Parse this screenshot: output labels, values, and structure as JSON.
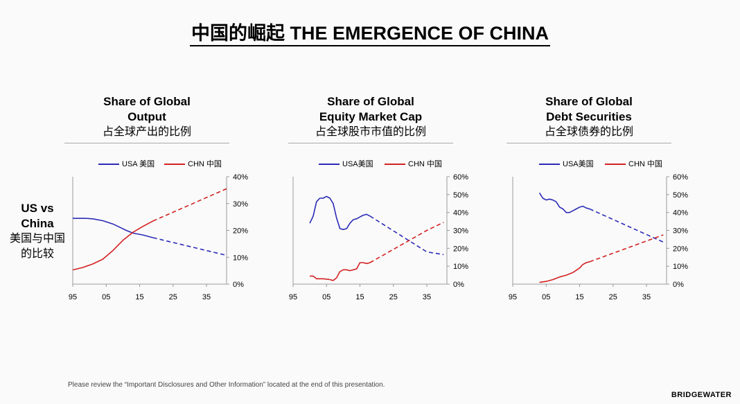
{
  "title": "中国的崛起 THE EMERGENCE OF CHINA",
  "side_label": {
    "en_line1": "US vs",
    "en_line2": "China",
    "cn_line1": "美国与中国",
    "cn_line2": "的比较"
  },
  "panels": [
    {
      "title1": "Share of Global",
      "title2": "Output",
      "subtitle": "占全球产出的比例",
      "legend": [
        "USA 美国",
        "CHN 中国"
      ]
    },
    {
      "title1": "Share of Global",
      "title2": "Equity Market Cap",
      "subtitle": "占全球股市市值的比例",
      "legend": [
        "USA美国",
        "CHN 中国"
      ]
    },
    {
      "title1": "Share of Global",
      "title2": "Debt Securities",
      "subtitle": "占全球债券的比例",
      "legend": [
        "USA美国",
        "CHN 中国"
      ]
    }
  ],
  "footer": "Please review the “Important Disclosures and Other Information” located at the end of this presentation.",
  "brand": "BRIDGEWATER",
  "colors": {
    "usa": "#2a2ab8",
    "chn": "#d42020",
    "axis": "#999999"
  },
  "chart_data": [
    {
      "type": "line",
      "x_ticks": [
        "95",
        "05",
        "15",
        "25",
        "35"
      ],
      "x_tick_values": [
        1995,
        2005,
        2015,
        2025,
        2035
      ],
      "xlim": [
        1995,
        2041
      ],
      "y_ticks": [
        "0%",
        "10%",
        "20%",
        "30%",
        "40%"
      ],
      "y_tick_values": [
        0,
        10,
        20,
        30,
        40
      ],
      "ylim": [
        0,
        40
      ],
      "y_axis": "right",
      "line_style": "solid through 2019, dashed projection after",
      "series": [
        {
          "name": "USA 美国",
          "actual": [
            [
              1995,
              24.5
            ],
            [
              1999,
              24.5
            ],
            [
              2001,
              24.3
            ],
            [
              2004,
              23.6
            ],
            [
              2007,
              22.4
            ],
            [
              2009,
              21.2
            ],
            [
              2011,
              20
            ],
            [
              2013,
              19
            ],
            [
              2016,
              18.3
            ],
            [
              2019,
              17.3
            ]
          ],
          "projected": [
            [
              2019,
              17.3
            ],
            [
              2041,
              10.7
            ]
          ]
        },
        {
          "name": "CHN 中国",
          "actual": [
            [
              1995,
              5.3
            ],
            [
              1998,
              6.2
            ],
            [
              2001,
              7.5
            ],
            [
              2004,
              9.3
            ],
            [
              2007,
              12.5
            ],
            [
              2010,
              16.3
            ],
            [
              2013,
              19.3
            ],
            [
              2016,
              21.5
            ],
            [
              2019,
              23.5
            ]
          ],
          "projected": [
            [
              2019,
              23.5
            ],
            [
              2041,
              35.5
            ]
          ]
        }
      ]
    },
    {
      "type": "line",
      "x_ticks": [
        "95",
        "05",
        "15",
        "25",
        "35"
      ],
      "x_tick_values": [
        1995,
        2005,
        2015,
        2025,
        2035
      ],
      "xlim": [
        1995,
        2041
      ],
      "y_ticks": [
        "0%",
        "10%",
        "20%",
        "30%",
        "40%",
        "50%",
        "60%"
      ],
      "y_tick_values": [
        0,
        10,
        20,
        30,
        40,
        50,
        60
      ],
      "ylim": [
        0,
        60
      ],
      "y_axis": "right",
      "line_style": "solid through 2018, dashed projection after",
      "series": [
        {
          "name": "USA美国",
          "actual": [
            [
              2000,
              34
            ],
            [
              2001,
              38
            ],
            [
              2002,
              46
            ],
            [
              2003,
              48
            ],
            [
              2004,
              48
            ],
            [
              2005,
              49
            ],
            [
              2006,
              48
            ],
            [
              2007,
              45
            ],
            [
              2008,
              37
            ],
            [
              2009,
              31
            ],
            [
              2010,
              30.5
            ],
            [
              2011,
              31
            ],
            [
              2012,
              34
            ],
            [
              2013,
              36
            ],
            [
              2014,
              36.5
            ],
            [
              2015,
              37.5
            ],
            [
              2016,
              38.5
            ],
            [
              2017,
              39
            ],
            [
              2018,
              38
            ]
          ],
          "projected": [
            [
              2018,
              38
            ],
            [
              2035,
              18
            ],
            [
              2040,
              16.5
            ]
          ]
        },
        {
          "name": "CHN 中国",
          "actual": [
            [
              2000,
              4.5
            ],
            [
              2001,
              4.5
            ],
            [
              2002,
              3
            ],
            [
              2003,
              3
            ],
            [
              2004,
              3
            ],
            [
              2005,
              2.8
            ],
            [
              2006,
              2.5
            ],
            [
              2007,
              2
            ],
            [
              2008,
              3.5
            ],
            [
              2009,
              7
            ],
            [
              2010,
              8
            ],
            [
              2011,
              8
            ],
            [
              2012,
              7.5
            ],
            [
              2013,
              8
            ],
            [
              2014,
              8.5
            ],
            [
              2015,
              12
            ],
            [
              2016,
              12
            ],
            [
              2017,
              11.5
            ],
            [
              2018,
              12
            ]
          ],
          "projected": [
            [
              2018,
              12
            ],
            [
              2035,
              30
            ],
            [
              2040,
              34.5
            ]
          ]
        }
      ]
    },
    {
      "type": "line",
      "x_ticks": [
        "95",
        "05",
        "15",
        "25",
        "35"
      ],
      "x_tick_values": [
        1995,
        2005,
        2015,
        2025,
        2035
      ],
      "xlim": [
        1995,
        2041
      ],
      "y_ticks": [
        "0%",
        "10%",
        "20%",
        "30%",
        "40%",
        "50%",
        "60%"
      ],
      "y_tick_values": [
        0,
        10,
        20,
        30,
        40,
        50,
        60
      ],
      "ylim": [
        0,
        60
      ],
      "y_axis": "right",
      "line_style": "solid through 2018, dashed projection after",
      "series": [
        {
          "name": "USA美国",
          "actual": [
            [
              2003,
              51
            ],
            [
              2004,
              48
            ],
            [
              2005,
              47
            ],
            [
              2006,
              47.5
            ],
            [
              2007,
              47
            ],
            [
              2008,
              46
            ],
            [
              2009,
              43
            ],
            [
              2010,
              42
            ],
            [
              2011,
              40
            ],
            [
              2012,
              40
            ],
            [
              2013,
              41
            ],
            [
              2014,
              42
            ],
            [
              2015,
              43
            ],
            [
              2016,
              43.5
            ],
            [
              2017,
              42.5
            ],
            [
              2018,
              42
            ]
          ],
          "projected": [
            [
              2018,
              42
            ],
            [
              2040,
              23.5
            ]
          ]
        },
        {
          "name": "CHN 中国",
          "actual": [
            [
              2003,
              1
            ],
            [
              2005,
              1.5
            ],
            [
              2007,
              2.5
            ],
            [
              2009,
              4
            ],
            [
              2011,
              5
            ],
            [
              2013,
              6.5
            ],
            [
              2015,
              9
            ],
            [
              2016,
              11
            ],
            [
              2017,
              12
            ],
            [
              2018,
              12.5
            ]
          ],
          "projected": [
            [
              2018,
              12.5
            ],
            [
              2040,
              27.5
            ]
          ]
        }
      ]
    }
  ]
}
